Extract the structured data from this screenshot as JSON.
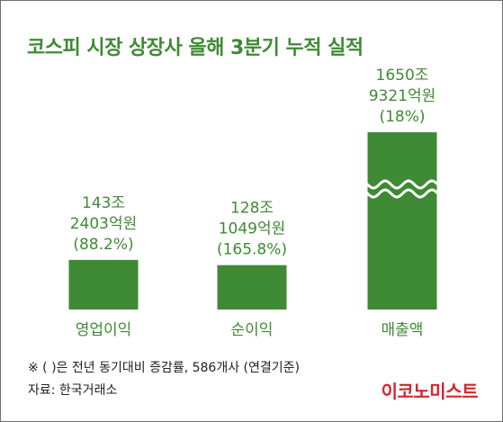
{
  "header": {
    "title": "코스피 시장 상장사 올해 3분기 누적 실적"
  },
  "chart_data": {
    "type": "bar",
    "title": "코스피 시장 상장사 올해 3분기 누적 실적",
    "axis_break": true,
    "categories": [
      "영업이익",
      "순이익",
      "매출액"
    ],
    "values": [
      143.2403,
      128.1049,
      1650.9321
    ],
    "value_unit": "조원",
    "labels": [
      {
        "amount": "143조",
        "amount2": "2403억원",
        "change": "(88.2%)"
      },
      {
        "amount": "128조",
        "amount2": "1049억원",
        "change": "(165.8%)"
      },
      {
        "amount": "1650조",
        "amount2": "9321억원",
        "change": "(18%)"
      }
    ],
    "yoy_change_pct": [
      88.2,
      165.8,
      18
    ],
    "colors": {
      "bar": "#3f8a34",
      "text": "#3f8a34"
    }
  },
  "footer": {
    "note": "※ (  )은 전년 동기대비 증감률, 586개사 (연결기준)",
    "source": "자료: 한국거래소",
    "logo": "이코노미스트"
  },
  "colors": {
    "accent": "#3f8a34",
    "logo": "#d9232d",
    "border": "#6e6e6e"
  }
}
